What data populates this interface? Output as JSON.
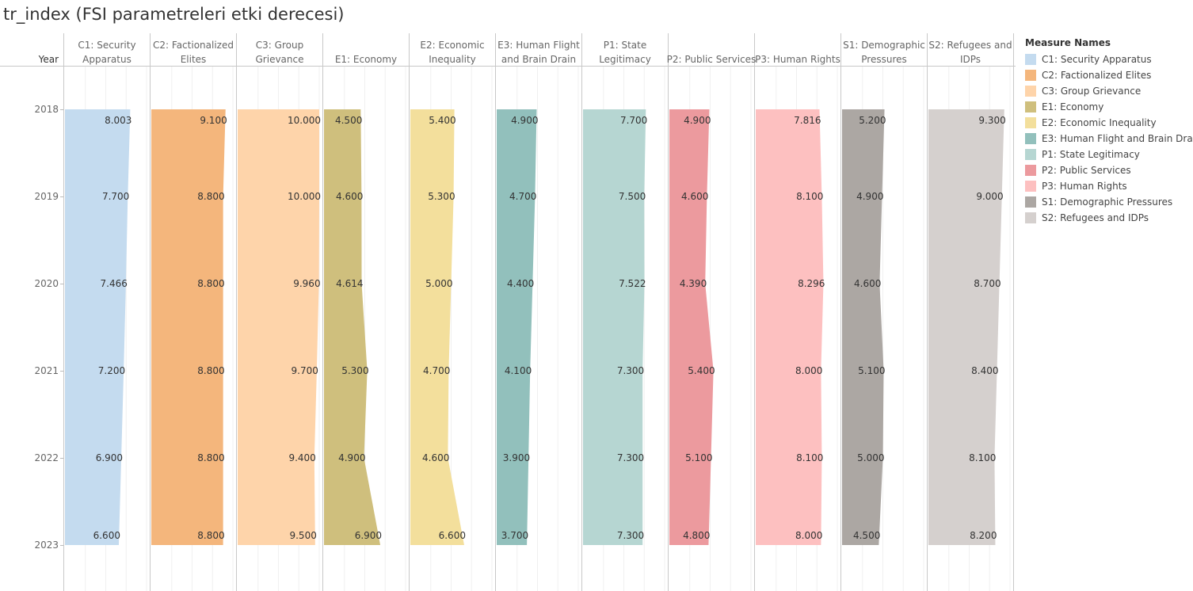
{
  "title": "tr_index (FSI parametreleri etki derecesi)",
  "y_axis_header": "Year",
  "legend_title": "Measure Names",
  "chart_data": {
    "type": "area",
    "orientation": "vertical-small-multiples",
    "years": [
      "2018",
      "2019",
      "2020",
      "2021",
      "2022",
      "2023"
    ],
    "panel_axis_range": [
      0,
      10
    ],
    "grid": true,
    "legend_position": "right",
    "series": [
      {
        "name": "C1: Security Apparatus",
        "header": [
          "C1: Security",
          "Apparatus"
        ],
        "color": "#c4dbef",
        "values": [
          8.003,
          7.7,
          7.466,
          7.2,
          6.9,
          6.6
        ],
        "labels": [
          "8.003",
          "7.700",
          "7.466",
          "7.200",
          "6.900",
          "6.600"
        ]
      },
      {
        "name": "C2: Factionalized Elites",
        "header": [
          "C2: Factionalized",
          "Elites"
        ],
        "color": "#f4b67c",
        "values": [
          9.1,
          8.8,
          8.8,
          8.8,
          8.8,
          8.8
        ],
        "labels": [
          "9.100",
          "8.800",
          "8.800",
          "8.800",
          "8.800",
          "8.800"
        ]
      },
      {
        "name": "C3: Group Grievance",
        "header": [
          "C3: Group",
          "Grievance"
        ],
        "color": "#fed4aa",
        "values": [
          10.0,
          10.0,
          9.96,
          9.7,
          9.4,
          9.5
        ],
        "labels": [
          "10.000",
          "10.000",
          "9.960",
          "9.700",
          "9.400",
          "9.500"
        ]
      },
      {
        "name": "E1: Economy",
        "header": [
          "E1: Economy"
        ],
        "color": "#cfbf7d",
        "values": [
          4.5,
          4.6,
          4.614,
          5.3,
          4.9,
          6.9
        ],
        "labels": [
          "4.500",
          "4.600",
          "4.614",
          "5.300",
          "4.900",
          "6.900"
        ]
      },
      {
        "name": "E2: Economic Inequality",
        "header": [
          "E2: Economic",
          "Inequality"
        ],
        "color": "#f3df9c",
        "values": [
          5.4,
          5.3,
          5.0,
          4.7,
          4.6,
          6.6
        ],
        "labels": [
          "5.400",
          "5.300",
          "5.000",
          "4.700",
          "4.600",
          "6.600"
        ]
      },
      {
        "name": "E3: Human Flight and Brain Drain",
        "header": [
          "E3: Human Flight",
          "and Brain Drain"
        ],
        "color": "#92c0bc",
        "values": [
          4.9,
          4.7,
          4.4,
          4.1,
          3.9,
          3.7
        ],
        "labels": [
          "4.900",
          "4.700",
          "4.400",
          "4.100",
          "3.900",
          "3.700"
        ]
      },
      {
        "name": "P1: State Legitimacy",
        "header": [
          "P1: State",
          "Legitimacy"
        ],
        "color": "#b6d6d2",
        "values": [
          7.7,
          7.5,
          7.522,
          7.3,
          7.3,
          7.3
        ],
        "labels": [
          "7.700",
          "7.500",
          "7.522",
          "7.300",
          "7.300",
          "7.300"
        ]
      },
      {
        "name": "P2: Public Services",
        "header": [
          "P2: Public Services"
        ],
        "color": "#ec9a9e",
        "values": [
          4.9,
          4.6,
          4.39,
          5.4,
          5.1,
          4.8
        ],
        "labels": [
          "4.900",
          "4.600",
          "4.390",
          "5.400",
          "5.100",
          "4.800"
        ]
      },
      {
        "name": "P3: Human Rights",
        "header": [
          "P3: Human Rights"
        ],
        "color": "#fdc0c0",
        "values": [
          7.816,
          8.1,
          8.296,
          8.0,
          8.1,
          8.0
        ],
        "labels": [
          "7.816",
          "8.100",
          "8.296",
          "8.000",
          "8.100",
          "8.000"
        ]
      },
      {
        "name": "S1: Demographic Pressures",
        "header": [
          "S1: Demographic",
          "Pressures"
        ],
        "color": "#aca7a3",
        "values": [
          5.2,
          4.9,
          4.6,
          5.1,
          5.0,
          4.5
        ],
        "labels": [
          "5.200",
          "4.900",
          "4.600",
          "5.100",
          "5.000",
          "4.500"
        ]
      },
      {
        "name": "S2: Refugees and IDPs",
        "header": [
          "S2: Refugees and",
          "IDPs"
        ],
        "color": "#d5d0ce",
        "values": [
          9.3,
          9.0,
          8.7,
          8.4,
          8.1,
          8.2
        ],
        "labels": [
          "9.300",
          "9.000",
          "8.700",
          "8.400",
          "8.100",
          "8.200"
        ]
      }
    ]
  }
}
